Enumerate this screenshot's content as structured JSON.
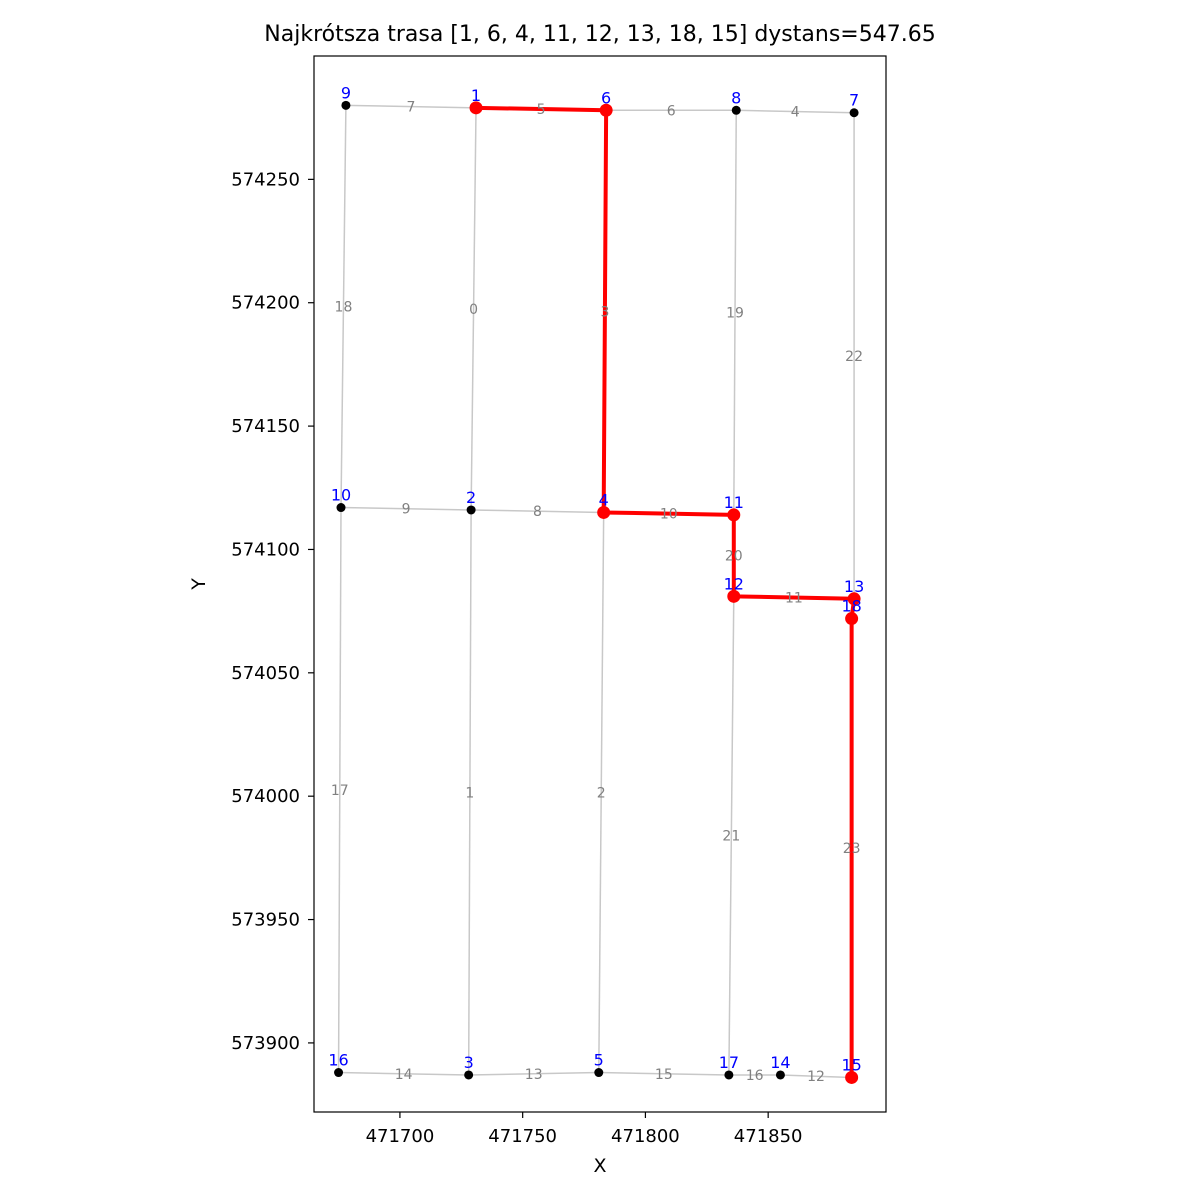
{
  "chart_data": {
    "type": "scatter",
    "title": "Najkrótsza trasa [1, 6, 4, 11, 12, 13, 18, 15]  dystans=547.65",
    "xlabel": "X",
    "ylabel": "Y",
    "xlim": [
      471665,
      471898
    ],
    "ylim": [
      573872,
      574300
    ],
    "xticks": [
      471700,
      471750,
      471800,
      471850
    ],
    "yticks": [
      573900,
      573950,
      574000,
      574050,
      574100,
      574150,
      574200,
      574250
    ],
    "grid": false,
    "colors": {
      "edge": "#c8c8c8",
      "route": "#ff0000",
      "node": "#000000",
      "node_label": "#0000ff",
      "edge_label": "#808080"
    },
    "nodes": [
      {
        "id": "1",
        "x": 471731,
        "y": 574279
      },
      {
        "id": "2",
        "x": 471729,
        "y": 574116
      },
      {
        "id": "3",
        "x": 471728,
        "y": 573887
      },
      {
        "id": "4",
        "x": 471783,
        "y": 574115
      },
      {
        "id": "5",
        "x": 471781,
        "y": 573888
      },
      {
        "id": "6",
        "x": 471784,
        "y": 574278
      },
      {
        "id": "7",
        "x": 471885,
        "y": 574277
      },
      {
        "id": "8",
        "x": 471837,
        "y": 574278
      },
      {
        "id": "9",
        "x": 471678,
        "y": 574280
      },
      {
        "id": "10",
        "x": 471676,
        "y": 574117
      },
      {
        "id": "11",
        "x": 471836,
        "y": 574114
      },
      {
        "id": "12",
        "x": 471836,
        "y": 574081
      },
      {
        "id": "13",
        "x": 471885,
        "y": 574080
      },
      {
        "id": "14",
        "x": 471855,
        "y": 573887
      },
      {
        "id": "15",
        "x": 471884,
        "y": 573886
      },
      {
        "id": "16",
        "x": 471675,
        "y": 573888
      },
      {
        "id": "17",
        "x": 471834,
        "y": 573887
      },
      {
        "id": "18",
        "x": 471884,
        "y": 574072
      }
    ],
    "edges": [
      {
        "id": "0",
        "from": "1",
        "to": "2"
      },
      {
        "id": "1",
        "from": "2",
        "to": "3"
      },
      {
        "id": "2",
        "from": "4",
        "to": "5"
      },
      {
        "id": "3",
        "from": "6",
        "to": "4"
      },
      {
        "id": "4",
        "from": "8",
        "to": "7"
      },
      {
        "id": "5",
        "from": "1",
        "to": "6"
      },
      {
        "id": "6",
        "from": "6",
        "to": "8"
      },
      {
        "id": "7",
        "from": "9",
        "to": "1"
      },
      {
        "id": "8",
        "from": "2",
        "to": "4"
      },
      {
        "id": "9",
        "from": "10",
        "to": "2"
      },
      {
        "id": "10",
        "from": "4",
        "to": "11"
      },
      {
        "id": "11",
        "from": "12",
        "to": "13"
      },
      {
        "id": "12",
        "from": "14",
        "to": "15"
      },
      {
        "id": "13",
        "from": "3",
        "to": "5"
      },
      {
        "id": "14",
        "from": "16",
        "to": "3"
      },
      {
        "id": "15",
        "from": "5",
        "to": "17"
      },
      {
        "id": "16",
        "from": "17",
        "to": "14"
      },
      {
        "id": "17",
        "from": "10",
        "to": "16"
      },
      {
        "id": "18",
        "from": "9",
        "to": "10"
      },
      {
        "id": "19",
        "from": "8",
        "to": "11"
      },
      {
        "id": "20",
        "from": "11",
        "to": "12"
      },
      {
        "id": "21",
        "from": "12",
        "to": "17"
      },
      {
        "id": "22",
        "from": "7",
        "to": "13"
      },
      {
        "id": "23",
        "from": "18",
        "to": "15"
      }
    ],
    "route": [
      "1",
      "6",
      "4",
      "11",
      "12",
      "13",
      "18",
      "15"
    ],
    "distance": 547.65
  }
}
